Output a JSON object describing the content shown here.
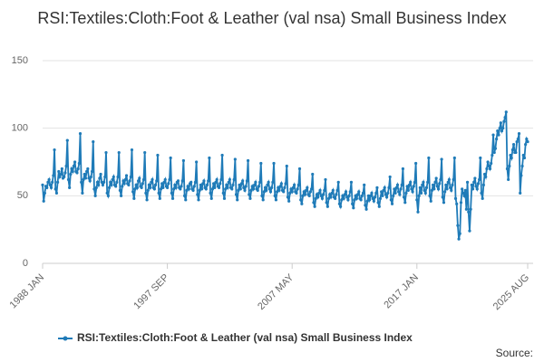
{
  "chart_data": {
    "type": "line",
    "title": "RSI:Textiles:Cloth:Foot & Leather (val nsa) Small Business Index",
    "source": "Source:",
    "categories": [
      "1988 JAN",
      null,
      null,
      null,
      null,
      null,
      null,
      null,
      null,
      null,
      null,
      null,
      null,
      null,
      null,
      null,
      null,
      null,
      null,
      null,
      null,
      null,
      null,
      null,
      null,
      null,
      null,
      null,
      null,
      null,
      null,
      null,
      null,
      null,
      null,
      null,
      null,
      null,
      null,
      null,
      null,
      null,
      null,
      null,
      null,
      null,
      null,
      null,
      null,
      null,
      null,
      null,
      null,
      null,
      null,
      null,
      null,
      null,
      null,
      null,
      null,
      null,
      null,
      null,
      null,
      null,
      null,
      null,
      null,
      null,
      null,
      null,
      null,
      null,
      null,
      null,
      null,
      null,
      null,
      null,
      null,
      null,
      null,
      null,
      null,
      null,
      null,
      null,
      null,
      null,
      null,
      null,
      null,
      null,
      null,
      null,
      null,
      null,
      null,
      null,
      null,
      null,
      null,
      null,
      null,
      null,
      null,
      null,
      null,
      null,
      null,
      null,
      null,
      null,
      null,
      null,
      "1997 SEP",
      null,
      null,
      null,
      null,
      null,
      null,
      null,
      null,
      null,
      null,
      null,
      null,
      null,
      null,
      null,
      null,
      null,
      null,
      null,
      null,
      null,
      null,
      null,
      null,
      null,
      null,
      null,
      null,
      null,
      null,
      null,
      null,
      null,
      null,
      null,
      null,
      null,
      null,
      null,
      null,
      null,
      null,
      null,
      null,
      null,
      null,
      null,
      null,
      null,
      null,
      null,
      null,
      null,
      null,
      null,
      null,
      null,
      null,
      null,
      null,
      null,
      null,
      null,
      null,
      null,
      null,
      null,
      null,
      null,
      null,
      null,
      null,
      null,
      null,
      null,
      null,
      null,
      null,
      null,
      null,
      null,
      null,
      null,
      null,
      null,
      null,
      null,
      null,
      null,
      null,
      null,
      null,
      null,
      null,
      null,
      null,
      null,
      null,
      null,
      null,
      null,
      null,
      null,
      null,
      null,
      null,
      null,
      null,
      null,
      null,
      null,
      null,
      null,
      null,
      null,
      "2007 MAY",
      null,
      null,
      null,
      null,
      null,
      null,
      null,
      null,
      null,
      null,
      null,
      null,
      null,
      null,
      null,
      null,
      null,
      null,
      null,
      null,
      null,
      null,
      null,
      null,
      null,
      null,
      null,
      null,
      null,
      null,
      null,
      null,
      null,
      null,
      null,
      null,
      null,
      null,
      null,
      null,
      null,
      null,
      null,
      null,
      null,
      null,
      null,
      null,
      null,
      null,
      null,
      null,
      null,
      null,
      null,
      null,
      null,
      null,
      null,
      null,
      null,
      null,
      null,
      null,
      null,
      null,
      null,
      null,
      null,
      null,
      null,
      null,
      null,
      null,
      null,
      null,
      null,
      null,
      null,
      null,
      null,
      null,
      null,
      null,
      null,
      null,
      null,
      null,
      null,
      null,
      null,
      null,
      null,
      null,
      null,
      null,
      null,
      null,
      null,
      null,
      null,
      null,
      null,
      null,
      null,
      null,
      null,
      null,
      null,
      null,
      null,
      null,
      null,
      null,
      null,
      "2017 JAN",
      null,
      null,
      null,
      null,
      null,
      null,
      null,
      null,
      null,
      null,
      null,
      null,
      null,
      null,
      null,
      null,
      null,
      null,
      null,
      null,
      null,
      null,
      null,
      null,
      null,
      null,
      null,
      null,
      null,
      null,
      null,
      null,
      null,
      null,
      null,
      null,
      null,
      null,
      null,
      null,
      null,
      null,
      null,
      null,
      null,
      null,
      null,
      null,
      null,
      null,
      null,
      null,
      null,
      null,
      null,
      null,
      null,
      null,
      null,
      null,
      null,
      null,
      null,
      null,
      null,
      null,
      null,
      null,
      null,
      null,
      null,
      null,
      null,
      null,
      null,
      null,
      null,
      null,
      null,
      null,
      null,
      null,
      null,
      null,
      null,
      null,
      null,
      null,
      null,
      null,
      null,
      null,
      null,
      null,
      null,
      null,
      null,
      null,
      null,
      null,
      null,
      null,
      "2025 AUG"
    ],
    "series": [
      {
        "name": "RSI:Textiles:Cloth:Foot & Leather (val nsa) Small Business Index",
        "color": "#1f7bb8",
        "values": [
          58,
          46,
          52,
          57,
          56,
          60,
          62,
          58,
          56,
          60,
          65,
          84,
          55,
          52,
          60,
          68,
          64,
          66,
          70,
          63,
          64,
          67,
          72,
          91,
          62,
          56,
          66,
          70,
          68,
          72,
          75,
          68,
          67,
          70,
          74,
          96,
          60,
          52,
          62,
          66,
          63,
          68,
          70,
          63,
          61,
          64,
          68,
          90,
          55,
          50,
          56,
          60,
          58,
          63,
          66,
          60,
          58,
          60,
          64,
          82,
          52,
          50,
          56,
          60,
          58,
          62,
          64,
          58,
          57,
          60,
          64,
          82,
          54,
          50,
          57,
          61,
          59,
          62,
          65,
          59,
          58,
          61,
          64,
          84,
          53,
          48,
          55,
          58,
          56,
          61,
          63,
          57,
          56,
          59,
          62,
          82,
          52,
          47,
          54,
          58,
          56,
          60,
          62,
          56,
          55,
          58,
          61,
          80,
          52,
          48,
          55,
          59,
          56,
          60,
          62,
          57,
          56,
          59,
          62,
          78,
          52,
          48,
          55,
          58,
          56,
          60,
          61,
          56,
          55,
          57,
          61,
          76,
          50,
          47,
          54,
          57,
          55,
          59,
          60,
          55,
          54,
          57,
          60,
          75,
          51,
          47,
          54,
          58,
          55,
          59,
          61,
          56,
          55,
          58,
          61,
          78,
          52,
          48,
          55,
          59,
          56,
          60,
          62,
          57,
          56,
          59,
          62,
          80,
          52,
          48,
          55,
          58,
          56,
          60,
          62,
          56,
          55,
          58,
          62,
          77,
          51,
          47,
          54,
          58,
          55,
          59,
          61,
          56,
          54,
          57,
          61,
          76,
          51,
          48,
          54,
          57,
          55,
          58,
          60,
          55,
          54,
          57,
          60,
          74,
          50,
          47,
          53,
          56,
          54,
          58,
          60,
          55,
          53,
          56,
          60,
          74,
          50,
          47,
          53,
          56,
          54,
          57,
          59,
          54,
          53,
          56,
          59,
          72,
          49,
          46,
          52,
          55,
          53,
          56,
          58,
          53,
          52,
          55,
          58,
          70,
          47,
          44,
          50,
          53,
          51,
          54,
          56,
          51,
          50,
          53,
          55,
          66,
          45,
          42,
          48,
          51,
          49,
          52,
          54,
          50,
          48,
          51,
          54,
          62,
          45,
          42,
          48,
          51,
          49,
          52,
          54,
          49,
          48,
          51,
          54,
          60,
          44,
          42,
          47,
          50,
          48,
          51,
          53,
          49,
          47,
          50,
          53,
          60,
          44,
          41,
          47,
          50,
          48,
          51,
          53,
          48,
          47,
          50,
          52,
          58,
          43,
          40,
          46,
          50,
          47,
          50,
          52,
          48,
          46,
          49,
          52,
          56,
          45,
          42,
          48,
          53,
          50,
          54,
          56,
          51,
          49,
          52,
          56,
          64,
          47,
          44,
          50,
          55,
          52,
          56,
          58,
          53,
          51,
          55,
          58,
          70,
          49,
          45,
          52,
          57,
          54,
          58,
          60,
          55,
          53,
          57,
          60,
          74,
          47,
          38,
          50,
          56,
          52,
          58,
          60,
          54,
          52,
          56,
          60,
          78,
          50,
          46,
          54,
          58,
          55,
          60,
          63,
          57,
          55,
          59,
          62,
          77,
          49,
          45,
          53,
          58,
          55,
          60,
          62,
          56,
          54,
          58,
          62,
          78,
          48,
          44,
          28,
          18,
          22,
          45,
          55,
          52,
          50,
          54,
          40,
          60,
          38,
          24,
          40,
          58,
          55,
          60,
          63,
          57,
          55,
          59,
          62,
          78,
          52,
          48,
          58,
          66,
          64,
          70,
          75,
          72,
          70,
          74,
          80,
          95,
          82,
          85,
          92,
          98,
          95,
          100,
          104,
          98,
          100,
          105,
          108,
          112,
          70,
          62,
          72,
          80,
          78,
          84,
          88,
          82,
          82,
          90,
          92,
          96,
          52,
          65,
          72,
          80,
          78,
          88,
          92,
          90
        ]
      }
    ],
    "ylim": [
      0,
      150
    ],
    "yticks": [
      0,
      50,
      100,
      150
    ],
    "grid": true
  }
}
